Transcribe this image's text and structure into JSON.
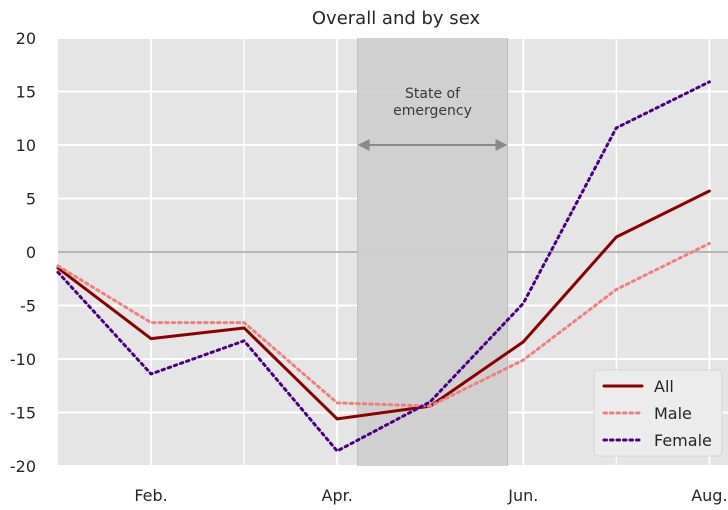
{
  "chart_data": {
    "type": "line",
    "title": "Overall and by sex",
    "xlabel": "",
    "ylabel": "",
    "x": [
      1,
      2,
      3,
      4,
      5,
      6,
      7,
      8
    ],
    "xlim": [
      1,
      8.2
    ],
    "ylim": [
      -20,
      20
    ],
    "x_ticks": [
      {
        "value": 2,
        "label": "Feb."
      },
      {
        "value": 4,
        "label": "Apr."
      },
      {
        "value": 6,
        "label": "Jun."
      },
      {
        "value": 8,
        "label": "Aug."
      }
    ],
    "y_ticks": [
      {
        "value": 20,
        "label": "20"
      },
      {
        "value": 15,
        "label": "15"
      },
      {
        "value": 10,
        "label": "10"
      },
      {
        "value": 5,
        "label": "5"
      },
      {
        "value": 0,
        "label": "0"
      },
      {
        "value": -5,
        "label": "-5"
      },
      {
        "value": -10,
        "label": "-10"
      },
      {
        "value": -15,
        "label": "-15"
      },
      {
        "value": -20,
        "label": "-20"
      }
    ],
    "minor_x_grid": [
      3,
      5,
      7
    ],
    "grid": true,
    "zero_line": 0,
    "background_color": "#e5e5e5",
    "grid_color": "#ffffff",
    "shaded_region": {
      "x_start": 4.22,
      "x_end": 5.83,
      "color": "#cfcfcf",
      "label_lines": [
        "State of",
        "emergency"
      ],
      "arrow_y": 10
    },
    "series": [
      {
        "name": "All",
        "style": "solid",
        "color": "#8b0000",
        "values": [
          -1.5,
          -8.1,
          -7.1,
          -15.6,
          -14.4,
          -8.4,
          1.4,
          5.7
        ]
      },
      {
        "name": "Male",
        "style": "dotted",
        "color": "#f08080",
        "values": [
          -1.3,
          -6.6,
          -6.6,
          -14.1,
          -14.4,
          -10.1,
          -3.5,
          0.8
        ]
      },
      {
        "name": "Female",
        "style": "dotted",
        "color": "#4b0082",
        "values": [
          -1.9,
          -11.4,
          -8.3,
          -18.6,
          -14.0,
          -4.8,
          11.6,
          15.9
        ]
      }
    ],
    "legend": {
      "position": "bottom-right"
    }
  }
}
